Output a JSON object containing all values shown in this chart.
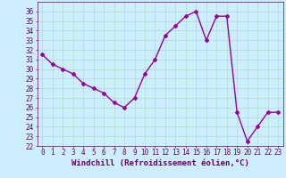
{
  "x": [
    0,
    1,
    2,
    3,
    4,
    5,
    6,
    7,
    8,
    9,
    10,
    11,
    12,
    13,
    14,
    15,
    16,
    17,
    18,
    19,
    20,
    21,
    22,
    23
  ],
  "y": [
    31.5,
    30.5,
    30.0,
    29.5,
    28.5,
    28.0,
    27.5,
    26.5,
    26.0,
    27.0,
    29.5,
    31.0,
    33.5,
    34.5,
    35.5,
    36.0,
    33.0,
    35.5,
    35.5,
    25.5,
    22.5,
    24.0,
    25.5,
    25.5
  ],
  "line_color": "#990099",
  "marker": "D",
  "marker_size": 2,
  "bg_color": "#cceeff",
  "grid_color": "#aaddcc",
  "xlabel": "Windchill (Refroidissement éolien,°C)",
  "xlabel_color": "#660066",
  "tick_color": "#660066",
  "ylim": [
    22,
    37
  ],
  "xlim": [
    -0.5,
    23.5
  ],
  "yticks": [
    22,
    23,
    24,
    25,
    26,
    27,
    28,
    29,
    30,
    31,
    32,
    33,
    34,
    35,
    36
  ],
  "xticks": [
    0,
    1,
    2,
    3,
    4,
    5,
    6,
    7,
    8,
    9,
    10,
    11,
    12,
    13,
    14,
    15,
    16,
    17,
    18,
    19,
    20,
    21,
    22,
    23
  ],
  "tick_fontsize": 5.5,
  "xlabel_fontsize": 6.5,
  "linewidth": 1.0
}
